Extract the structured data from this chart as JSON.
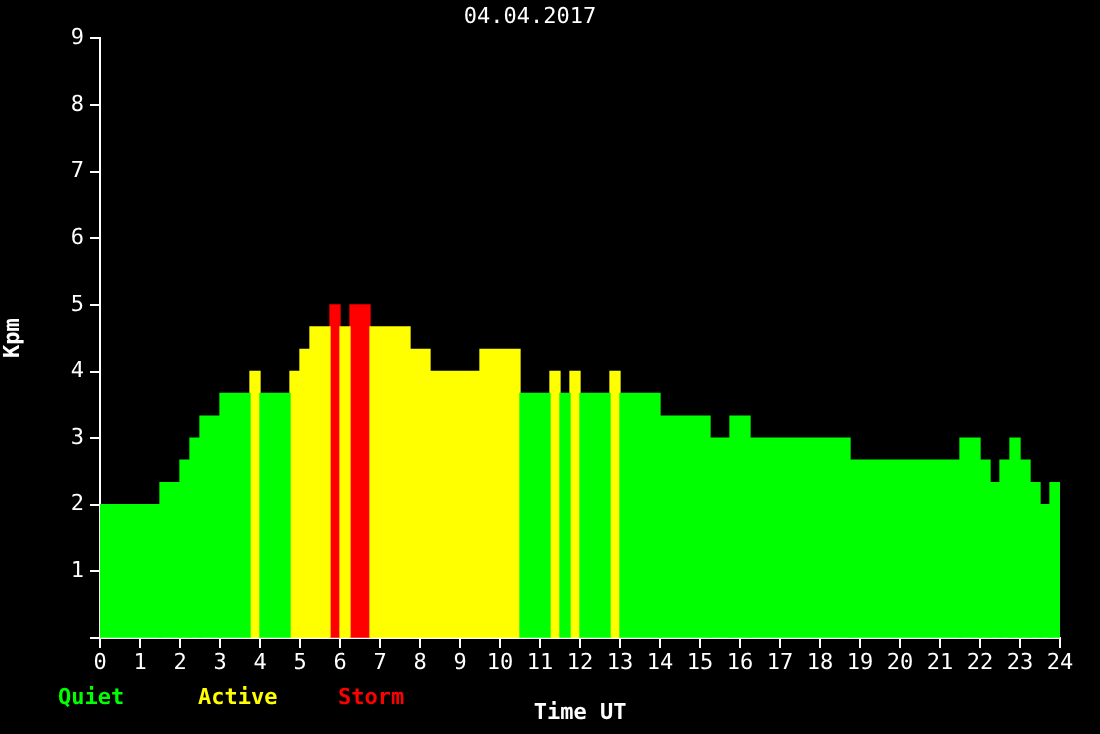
{
  "chart_data": {
    "type": "histogram",
    "title": "04.04.2017",
    "xlabel": "Time UT",
    "ylabel": "Kpm",
    "legend": "bottom left",
    "bins": [
      0,
      1.5,
      2,
      2.25,
      2.5,
      3,
      3.75,
      4,
      4.75,
      5,
      5.25,
      5.75,
      6,
      6.25,
      6.75,
      7.75,
      8.25,
      9.5,
      10.5,
      11.25,
      11.5,
      11.75,
      12,
      12.75,
      13,
      14,
      15.25,
      15.75,
      16.25,
      18.75,
      21.5,
      22,
      22.25,
      22.5,
      22.75,
      23,
      23.25,
      23.5,
      23.75,
      24
    ],
    "series": [
      {
        "name": "Quiet",
        "color": "#00ff00",
        "values": [
          2,
          2.33,
          2.67,
          3,
          3.33,
          3.67,
          null,
          3.67,
          null,
          null,
          null,
          null,
          null,
          null,
          null,
          null,
          null,
          null,
          3.67,
          null,
          3.67,
          null,
          3.67,
          null,
          3.67,
          3.33,
          3,
          3.33,
          3,
          2.67,
          3,
          2.67,
          2.33,
          2.67,
          3,
          2.67,
          2.33,
          2,
          2.33
        ]
      },
      {
        "name": "Active",
        "color": "#ffff00",
        "values": [
          null,
          null,
          null,
          null,
          null,
          null,
          4,
          null,
          4,
          4.33,
          4.67,
          null,
          4.67,
          null,
          4.67,
          4.33,
          4,
          4.33,
          null,
          4,
          null,
          4,
          null,
          4,
          null,
          null,
          null,
          null,
          null,
          null,
          null,
          null,
          null,
          null,
          null,
          null,
          null,
          null,
          null
        ]
      },
      {
        "name": "Storm",
        "color": "#ff0000",
        "values": [
          null,
          null,
          null,
          null,
          null,
          null,
          null,
          null,
          null,
          null,
          null,
          5,
          null,
          5,
          null,
          null,
          null,
          null,
          null,
          null,
          null,
          null,
          null,
          null,
          null,
          null,
          null,
          null,
          null,
          null,
          null,
          null,
          null,
          null,
          null,
          null,
          null,
          null,
          null
        ]
      }
    ],
    "xlim": [
      0,
      24
    ],
    "xticks": [
      0,
      1,
      2,
      3,
      4,
      5,
      6,
      7,
      8,
      9,
      10,
      11,
      12,
      13,
      14,
      15,
      16,
      17,
      18,
      19,
      20,
      21,
      22,
      23,
      24
    ],
    "ylim": [
      0,
      9
    ],
    "yticks": [
      {
        "value": 0,
        "label": null
      },
      1,
      2,
      3,
      4,
      5,
      6,
      7,
      8,
      9
    ]
  }
}
